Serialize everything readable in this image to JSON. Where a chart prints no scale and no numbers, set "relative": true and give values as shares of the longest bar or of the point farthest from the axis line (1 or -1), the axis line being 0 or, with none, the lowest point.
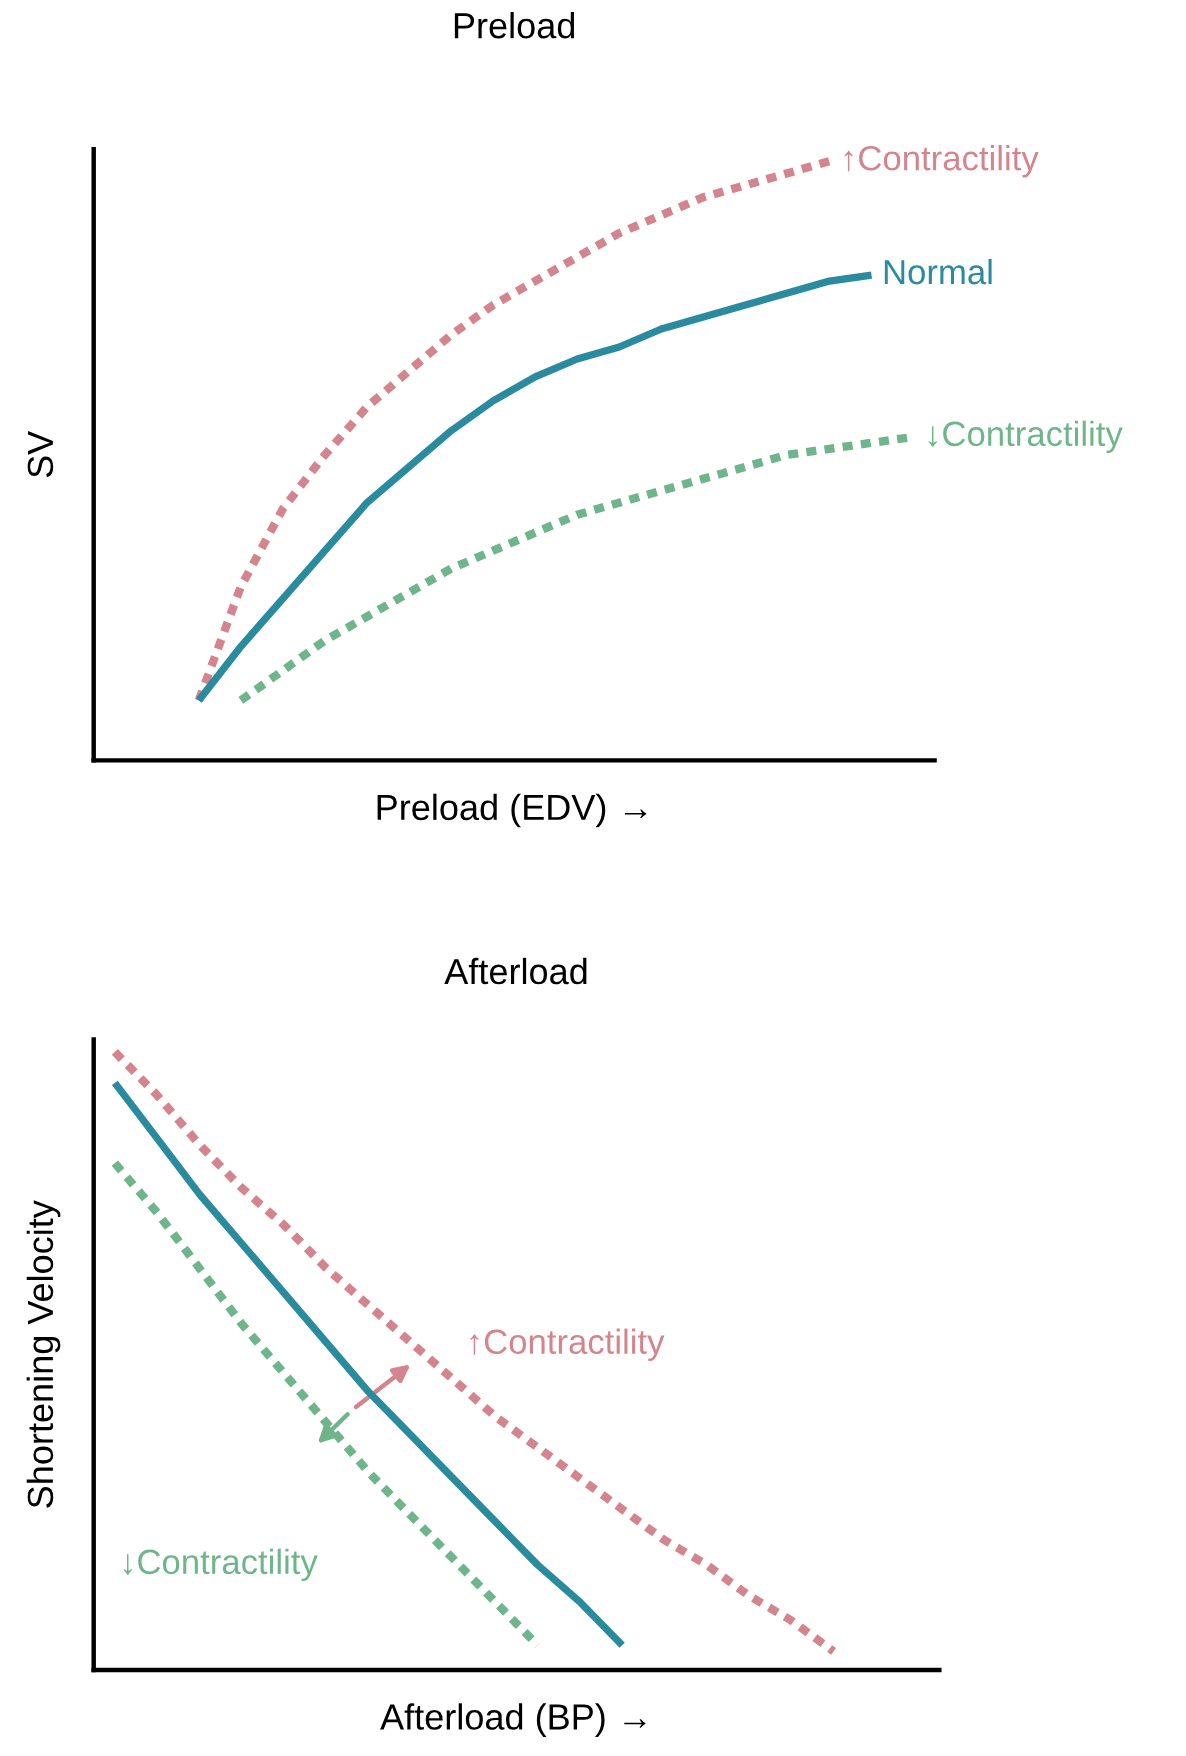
{
  "chart_data": [
    {
      "type": "line",
      "title": "Preload",
      "xlabel": "Preload (EDV) →",
      "ylabel": "SV",
      "relative": true,
      "legend": false,
      "tick_labels": false,
      "marker": "none",
      "categories": [
        null,
        null,
        null,
        null,
        null,
        null,
        null,
        null,
        null,
        null,
        null,
        null,
        null,
        null,
        null,
        null,
        null,
        null,
        null,
        null
      ],
      "series": [
        {
          "name": "↑Contractility",
          "color": "#d4848c",
          "line_style": "dotted",
          "values": [
            null,
            null,
            0.1,
            0.29,
            0.42,
            0.51,
            0.59,
            0.65,
            0.71,
            0.76,
            0.8,
            0.84,
            0.88,
            0.91,
            0.94,
            0.96,
            0.98,
            1.0,
            null,
            null
          ]
        },
        {
          "name": "Normal",
          "color": "#2a8a9e",
          "line_style": "solid",
          "values": [
            null,
            null,
            0.1,
            0.19,
            0.27,
            0.35,
            0.43,
            0.49,
            0.55,
            0.6,
            0.64,
            0.67,
            0.69,
            0.72,
            0.74,
            0.76,
            0.78,
            0.8,
            0.81,
            null
          ]
        },
        {
          "name": "↓Contractility",
          "color": "#6fb58a",
          "line_style": "dotted",
          "values": [
            null,
            null,
            null,
            0.1,
            0.15,
            0.2,
            0.24,
            0.28,
            0.32,
            0.35,
            0.38,
            0.41,
            0.43,
            0.45,
            0.47,
            0.49,
            0.51,
            0.52,
            0.53,
            0.54
          ]
        }
      ]
    },
    {
      "type": "line",
      "title": "Afterload",
      "xlabel": "Afterload (BP) →",
      "ylabel": "Shortening Velocity",
      "relative": true,
      "legend": false,
      "tick_labels": false,
      "marker": "none",
      "categories": [
        null,
        null,
        null,
        null,
        null,
        null,
        null,
        null,
        null,
        null,
        null,
        null,
        null,
        null,
        null,
        null,
        null,
        null,
        null,
        null
      ],
      "series": [
        {
          "name": "↑Contractility",
          "color": "#d4848c",
          "line_style": "dotted",
          "values": [
            1.0,
            0.93,
            0.85,
            0.78,
            0.72,
            0.65,
            0.59,
            0.53,
            0.47,
            0.41,
            0.36,
            0.31,
            0.26,
            0.21,
            0.17,
            0.12,
            0.08,
            0.03,
            null,
            null
          ]
        },
        {
          "color": "#2a8a9e",
          "line_style": "solid",
          "values": [
            0.95,
            0.86,
            0.77,
            0.69,
            0.61,
            0.53,
            0.45,
            0.38,
            0.31,
            0.24,
            0.17,
            0.11,
            0.04,
            null,
            null,
            null,
            null,
            null,
            null,
            null
          ]
        },
        {
          "name": "↓Contractility",
          "color": "#6fb58a",
          "line_style": "dotted",
          "values": [
            0.82,
            0.74,
            0.65,
            0.56,
            0.48,
            0.4,
            0.32,
            0.25,
            0.18,
            0.11,
            0.04,
            null,
            null,
            null,
            null,
            null,
            null,
            null,
            null,
            null
          ]
        }
      ]
    }
  ]
}
